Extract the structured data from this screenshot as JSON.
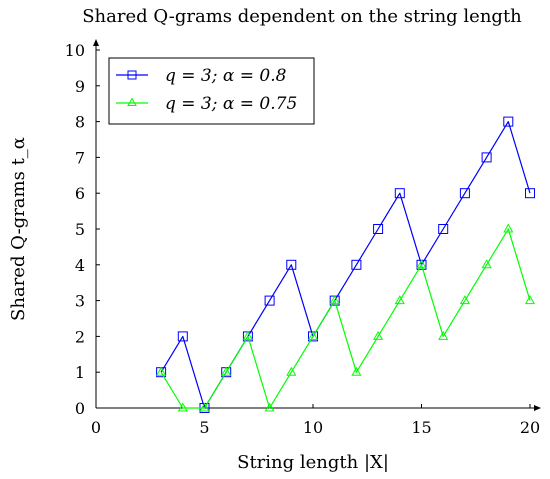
{
  "chart_data": {
    "type": "line",
    "title": "Shared Q-grams dependent on the string length",
    "xlabel": "String length |X|",
    "ylabel": "Shared Q-grams t_α",
    "xlim": [
      0,
      20
    ],
    "ylim": [
      0,
      10
    ],
    "xticks": [
      0,
      5,
      10,
      15,
      20
    ],
    "yticks": [
      0,
      1,
      2,
      3,
      4,
      5,
      6,
      7,
      8,
      9,
      10
    ],
    "grid": false,
    "legend_position": "top-left",
    "series": [
      {
        "name": "q = 3; α = 0.8",
        "color": "#0000ff",
        "marker": "square",
        "x": [
          3,
          4,
          5,
          6,
          7,
          8,
          9,
          10,
          11,
          12,
          13,
          14,
          15,
          16,
          17,
          18,
          19,
          20
        ],
        "y": [
          1,
          2,
          0,
          1,
          2,
          3,
          4,
          2,
          3,
          4,
          5,
          6,
          4,
          5,
          6,
          7,
          8,
          6
        ]
      },
      {
        "name": "q = 3; α = 0.75",
        "color": "#00ff00",
        "marker": "triangle",
        "x": [
          3,
          4,
          5,
          6,
          7,
          8,
          9,
          10,
          11,
          12,
          13,
          14,
          15,
          16,
          17,
          18,
          19,
          20
        ],
        "y": [
          1,
          0,
          0,
          1,
          2,
          0,
          1,
          2,
          3,
          1,
          2,
          3,
          4,
          2,
          3,
          4,
          5,
          3
        ]
      }
    ]
  }
}
